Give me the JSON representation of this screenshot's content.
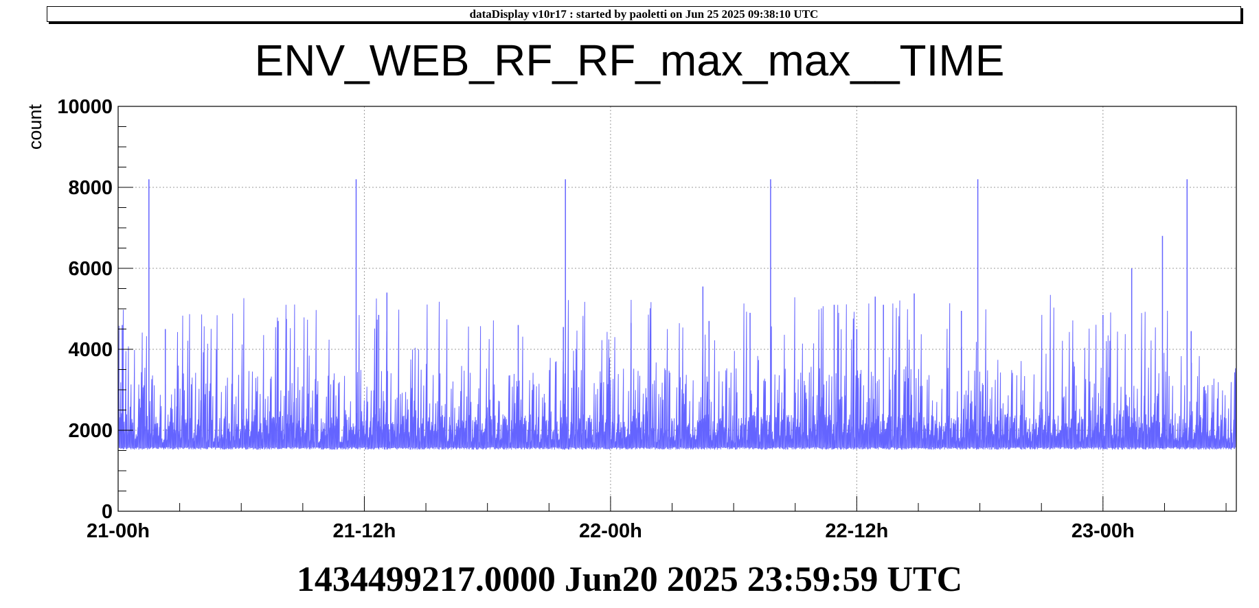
{
  "header": {
    "text": "dataDisplay v10r17 : started by paoletti on Jun 25 2025 09:38:10 UTC"
  },
  "footer": {
    "text": "1434499217.0000 Jun20 2025 23:59:59 UTC"
  },
  "chart_data": {
    "type": "line",
    "title": "ENV_WEB_RF_RF_max_max__TIME",
    "xlabel": "",
    "ylabel": "count",
    "ylim": [
      0,
      10000
    ],
    "xlim_hours": [
      0,
      54.5
    ],
    "grid": true,
    "line_color": "#6464ff",
    "y_ticks": [
      {
        "value": 0,
        "label": "0"
      },
      {
        "value": 2000,
        "label": "2000"
      },
      {
        "value": 4000,
        "label": "4000"
      },
      {
        "value": 6000,
        "label": "6000"
      },
      {
        "value": 8000,
        "label": "8000"
      },
      {
        "value": 10000,
        "label": "10000"
      }
    ],
    "x_ticks": [
      {
        "value": 0,
        "label": "21-00h"
      },
      {
        "value": 12,
        "label": "21-12h"
      },
      {
        "value": 24,
        "label": "22-00h"
      },
      {
        "value": 36,
        "label": "22-12h"
      },
      {
        "value": 48,
        "label": "23-00h"
      }
    ],
    "baseline": 1550,
    "spikes": [
      {
        "x": 1.5,
        "y": 8200
      },
      {
        "x": 11.6,
        "y": 8200
      },
      {
        "x": 21.8,
        "y": 8200
      },
      {
        "x": 31.8,
        "y": 8200
      },
      {
        "x": 41.9,
        "y": 8200
      },
      {
        "x": 52.1,
        "y": 8200
      },
      {
        "x": 50.9,
        "y": 6800
      },
      {
        "x": 49.4,
        "y": 6000
      },
      {
        "x": 28.5,
        "y": 5550
      },
      {
        "x": 13.1,
        "y": 5400
      },
      {
        "x": 36.9,
        "y": 5300
      },
      {
        "x": 38.8,
        "y": 5380
      },
      {
        "x": 37.3,
        "y": 5100
      },
      {
        "x": 34.9,
        "y": 5100
      },
      {
        "x": 41.1,
        "y": 4950
      },
      {
        "x": 30.8,
        "y": 4900
      },
      {
        "x": 12.7,
        "y": 4850
      },
      {
        "x": 48.0,
        "y": 4850
      },
      {
        "x": 8.2,
        "y": 4750
      },
      {
        "x": 7.8,
        "y": 4700
      },
      {
        "x": 25.0,
        "y": 4650
      },
      {
        "x": 28.8,
        "y": 4700
      },
      {
        "x": 0.2,
        "y": 4600
      },
      {
        "x": 21.7,
        "y": 4550
      },
      {
        "x": 19.5,
        "y": 4600
      },
      {
        "x": 2.3,
        "y": 4500
      },
      {
        "x": 36.0,
        "y": 4500
      },
      {
        "x": 52.3,
        "y": 4450
      }
    ]
  }
}
